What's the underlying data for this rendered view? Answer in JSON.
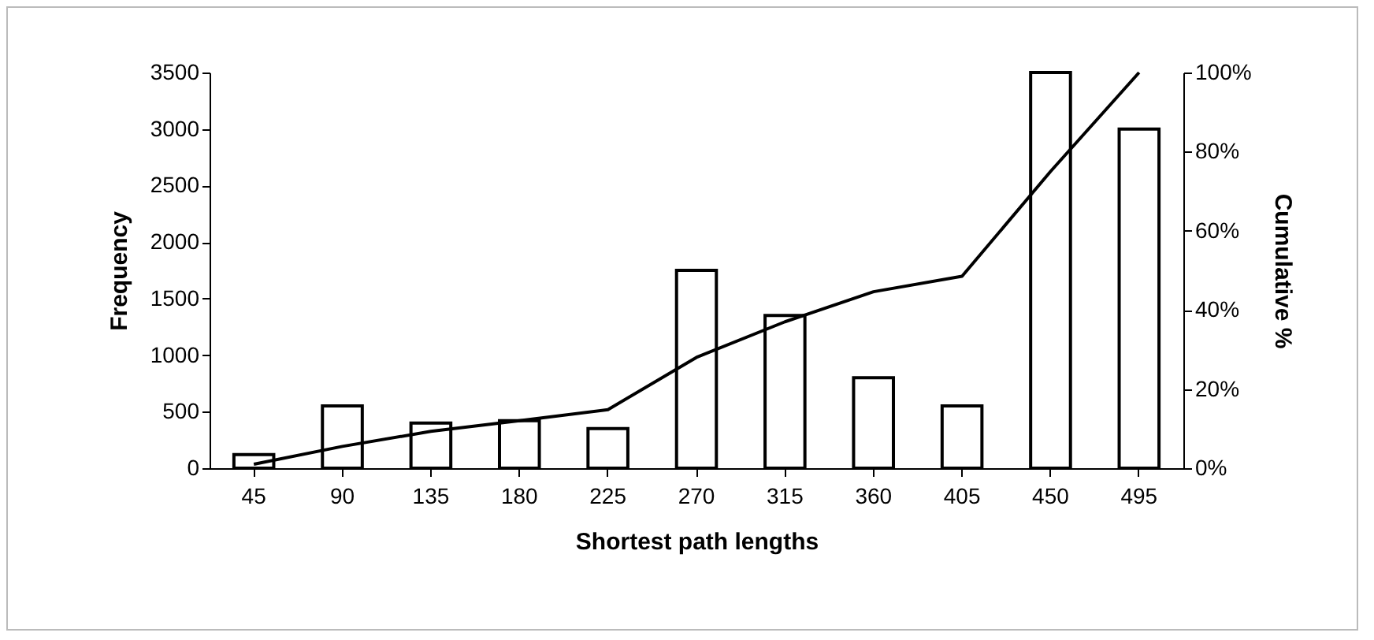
{
  "chart_data": {
    "type": "bar",
    "xlabel": "Shortest path lengths",
    "ylabel": "Frequency",
    "y2label": "Cumulative %",
    "categories": [
      "45",
      "90",
      "135",
      "180",
      "225",
      "270",
      "315",
      "360",
      "405",
      "450",
      "495"
    ],
    "series": [
      {
        "color": "#ffffff",
        "values": [
          120,
          550,
          400,
          420,
          350,
          1750,
          1350,
          800,
          550,
          3500,
          3000
        ]
      },
      {
        "type": "line",
        "axis": "y2",
        "color": "#000000",
        "values": [
          1,
          5.5,
          9.3,
          12,
          14.8,
          28,
          37,
          44.6,
          48.5,
          75,
          100
        ]
      }
    ],
    "ylim": [
      0,
      3500
    ],
    "yticks": [
      0,
      500,
      1000,
      1500,
      2000,
      2500,
      3000,
      3500
    ],
    "y2lim": [
      0,
      100
    ],
    "y2ticks": [
      {
        "value": 0,
        "label": "0%"
      },
      {
        "value": 20,
        "label": "20%"
      },
      {
        "value": 40,
        "label": "40%"
      },
      {
        "value": 60,
        "label": "60%"
      },
      {
        "value": 80,
        "label": "80%"
      },
      {
        "value": 100,
        "label": "100%"
      }
    ],
    "grid": false,
    "marker": "none",
    "line_style": "solid"
  }
}
